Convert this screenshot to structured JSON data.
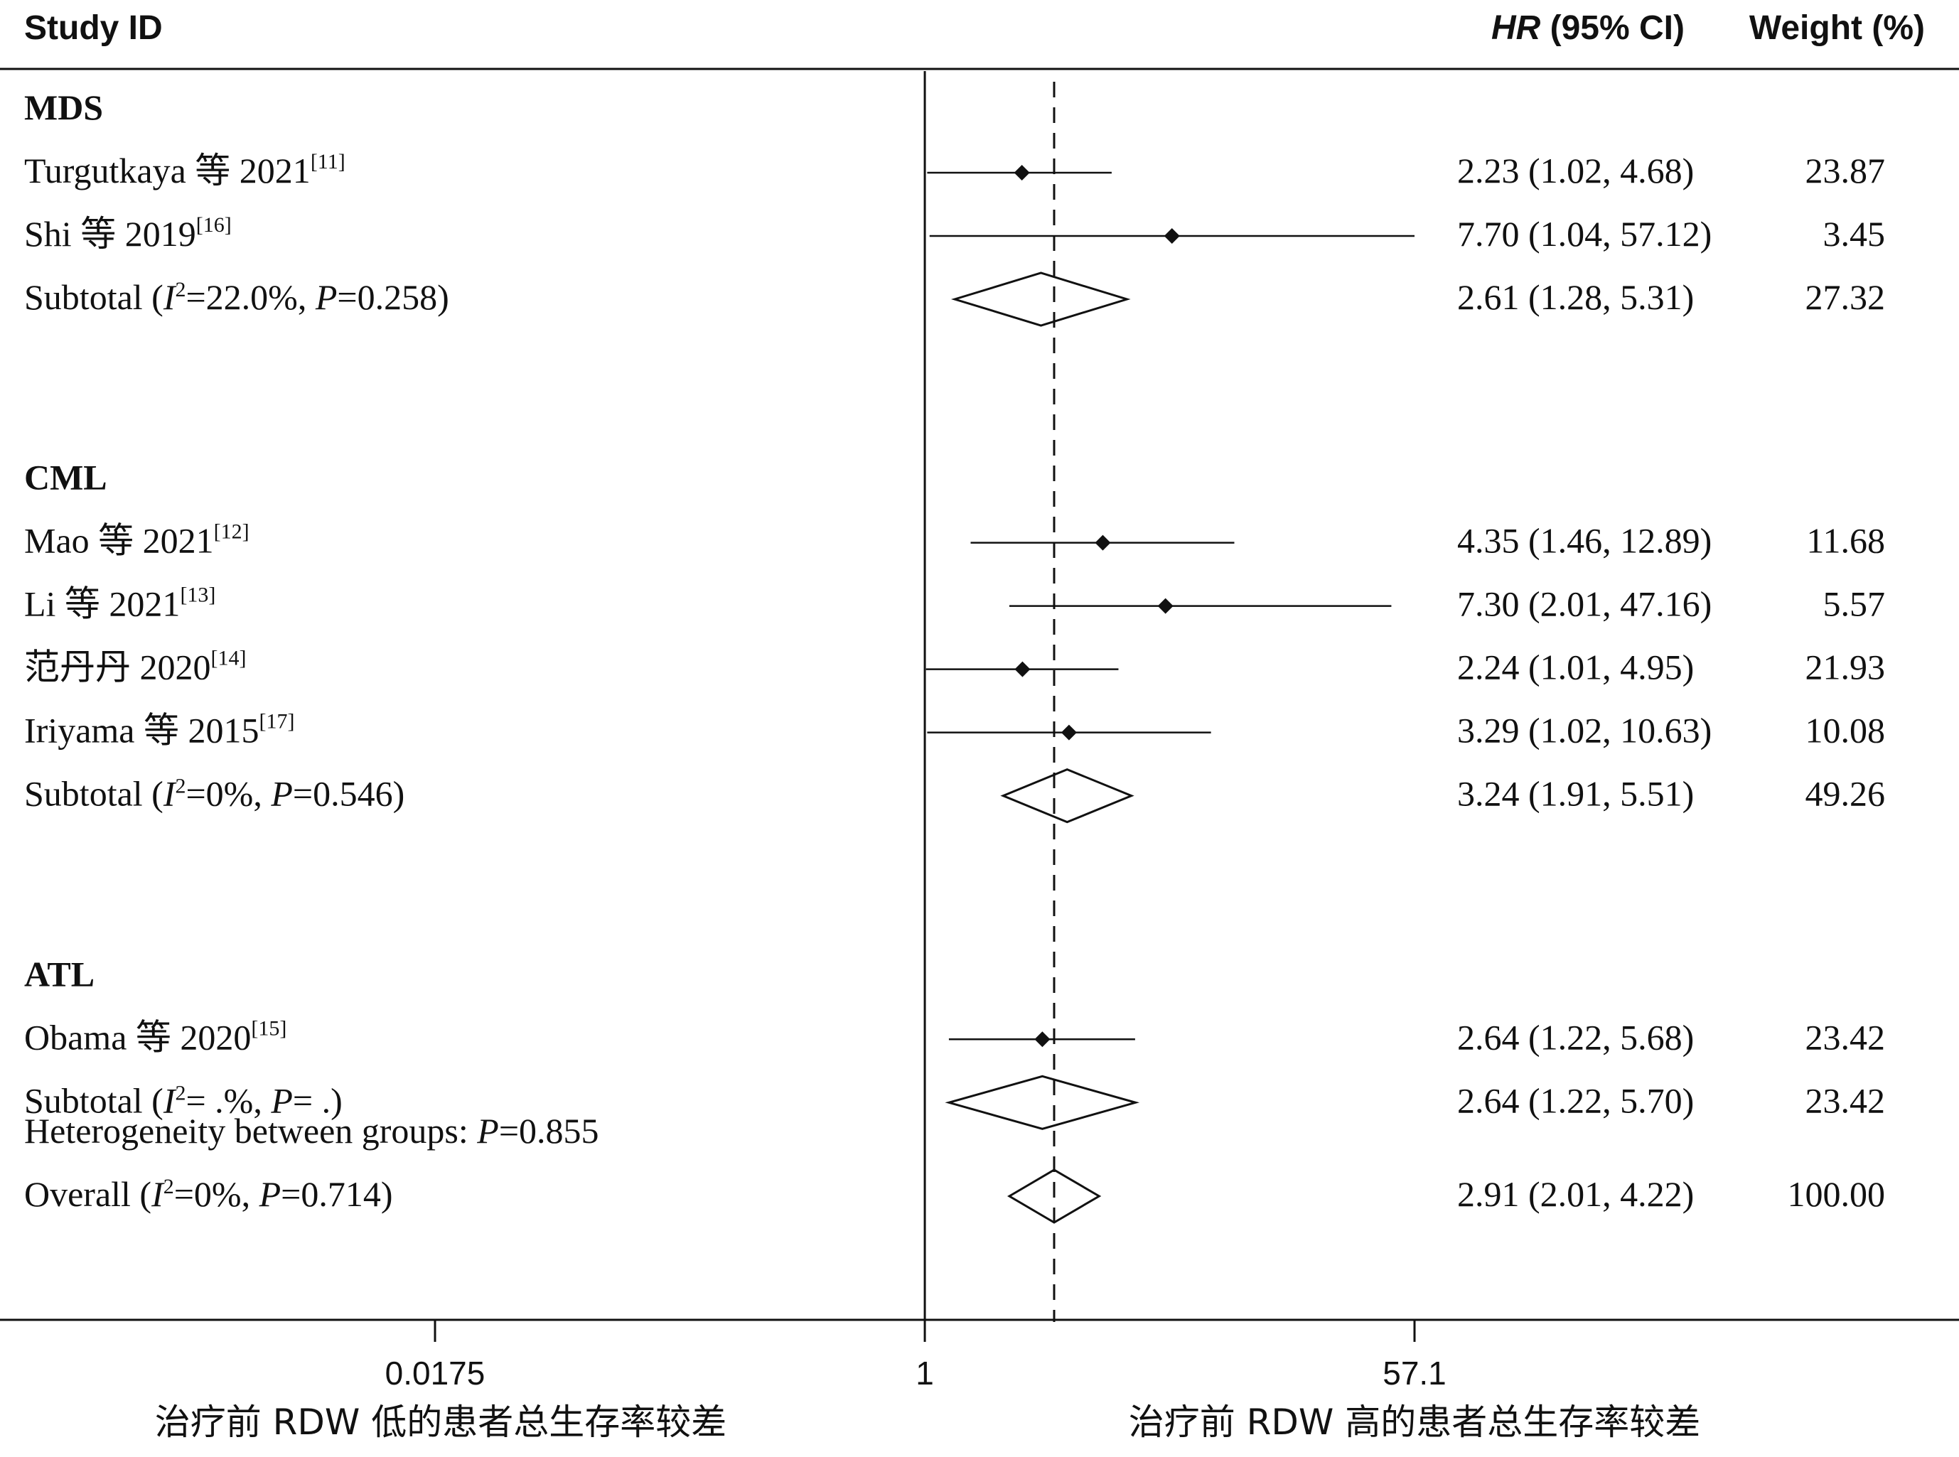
{
  "chart_data": {
    "type": "forest",
    "header": {
      "study_id": "Study ID",
      "hr_label": "HR",
      "ci_label": " (95% CI)",
      "weight_label": "Weight (%)"
    },
    "groups": [
      {
        "name": "MDS",
        "studies": [
          {
            "label": "Turgutkaya 等 2021",
            "ref": "[11]",
            "hr": 2.23,
            "lo": 1.02,
            "hi": 4.68,
            "hr_text": "2.23 (1.02, 4.68)",
            "weight": "23.87"
          },
          {
            "label": "Shi 等 2019",
            "ref": "[16]",
            "hr": 7.7,
            "lo": 1.04,
            "hi": 57.12,
            "hr_text": "7.70 (1.04, 57.12)",
            "weight": "3.45"
          }
        ],
        "subtotal": {
          "label": "Subtotal",
          "i2": "=22.0%, ",
          "p": "=0.258)",
          "hr": 2.61,
          "lo": 1.28,
          "hi": 5.31,
          "hr_text": "2.61 (1.28, 5.31)",
          "weight": "27.32"
        }
      },
      {
        "name": "CML",
        "studies": [
          {
            "label": "Mao 等 2021",
            "ref": "[12]",
            "hr": 4.35,
            "lo": 1.46,
            "hi": 12.89,
            "hr_text": "4.35 (1.46, 12.89)",
            "weight": "11.68"
          },
          {
            "label": "Li 等 2021",
            "ref": "[13]",
            "hr": 7.3,
            "lo": 2.01,
            "hi": 47.16,
            "hr_text": "7.30 (2.01, 47.16)",
            "weight": "5.57"
          },
          {
            "label": "范丹丹 2020",
            "ref": "[14]",
            "hr": 2.24,
            "lo": 1.01,
            "hi": 4.95,
            "hr_text": "2.24 (1.01, 4.95)",
            "weight": "21.93"
          },
          {
            "label": "Iriyama 等 2015",
            "ref": "[17]",
            "hr": 3.29,
            "lo": 1.02,
            "hi": 10.63,
            "hr_text": "3.29 (1.02, 10.63)",
            "weight": "10.08"
          }
        ],
        "subtotal": {
          "label": "Subtotal",
          "i2": "=0%, ",
          "p": "=0.546)",
          "hr": 3.24,
          "lo": 1.91,
          "hi": 5.51,
          "hr_text": "3.24 (1.91, 5.51)",
          "weight": "49.26"
        }
      },
      {
        "name": "ATL",
        "studies": [
          {
            "label": "Obama 等 2020",
            "ref": "[15]",
            "hr": 2.64,
            "lo": 1.22,
            "hi": 5.68,
            "hr_text": "2.64 (1.22, 5.68)",
            "weight": "23.42"
          }
        ],
        "subtotal": {
          "label": "Subtotal",
          "i2": "= .%, ",
          "p": "= .)",
          "hr": 2.64,
          "lo": 1.22,
          "hi": 5.7,
          "hr_text": "2.64 (1.22, 5.70)",
          "weight": "23.42"
        }
      }
    ],
    "heterogeneity": {
      "text": "Heterogeneity between groups: ",
      "p": "=0.855"
    },
    "overall": {
      "label": "Overall",
      "i2": "=0%, ",
      "p": "=0.714)",
      "hr": 2.91,
      "lo": 2.01,
      "hi": 4.22,
      "hr_text": "2.91 (2.01, 4.22)",
      "weight": "100.00"
    },
    "x_axis": {
      "scale": "log",
      "ticks": [
        {
          "value": 0.0175,
          "label": "0.0175"
        },
        {
          "value": 1,
          "label": "1"
        },
        {
          "value": 57.1,
          "label": "57.1"
        }
      ],
      "null_line": 1,
      "overall_line": 2.91
    },
    "direction_labels": {
      "left": "治疗前 RDW 低的患者总生存率较差",
      "right": "治疗前 RDW 高的患者总生存率较差"
    }
  }
}
